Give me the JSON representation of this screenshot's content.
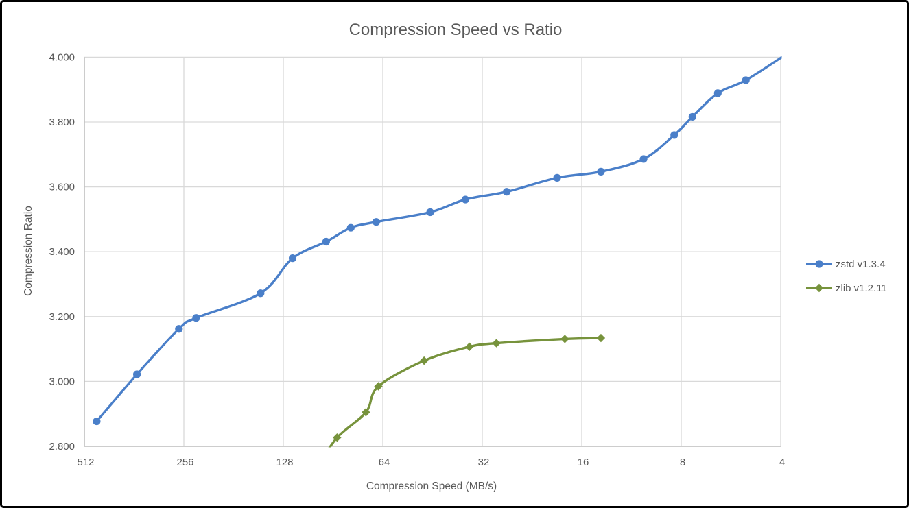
{
  "title": "Compression Speed vs Ratio",
  "colors": {
    "series_zstd": "#4A7FC9",
    "series_zlib": "#77933C",
    "gridline": "#D9D9D9",
    "axis_line": "#BFBFBF",
    "tick_text": "#595959",
    "title_text": "#595959",
    "legend_text": "#595959",
    "chart_background": "#FFFFFF",
    "frame_border": "#000000"
  },
  "chart_data": {
    "type": "line",
    "title": "Compression Speed vs Ratio",
    "xlabel": "Compression Speed (MB/s)",
    "ylabel": "Compression Ratio",
    "x_scale": "log2-reversed",
    "x_ticks": [
      512,
      256,
      128,
      64,
      32,
      16,
      8,
      4
    ],
    "y_tick_labels": [
      "2.800",
      "3.000",
      "3.200",
      "3.400",
      "3.600",
      "3.800",
      "4.000"
    ],
    "x_range": [
      512,
      4
    ],
    "y_range": [
      2.8,
      4.0
    ],
    "grid": true,
    "legend_position": "right-middle",
    "series": [
      {
        "name": "zstd v1.3.4",
        "color": "#4A7FC9",
        "marker": "circle",
        "points": [
          [
            470,
            2.877
          ],
          [
            355,
            3.022
          ],
          [
            265,
            3.162
          ],
          [
            235,
            3.196
          ],
          [
            150,
            3.272
          ],
          [
            120,
            3.38
          ],
          [
            95,
            3.431
          ],
          [
            80,
            3.474
          ],
          [
            67,
            3.492
          ],
          [
            46,
            3.522
          ],
          [
            36,
            3.561
          ],
          [
            27,
            3.585
          ],
          [
            19,
            3.628
          ],
          [
            14,
            3.647
          ],
          [
            10.4,
            3.686
          ],
          [
            8.4,
            3.76
          ],
          [
            7.4,
            3.816
          ],
          [
            6.2,
            3.889
          ],
          [
            5.1,
            3.929
          ],
          [
            3.9,
            4.005
          ]
        ],
        "note": "last point extends past top-right plot corner and is clipped"
      },
      {
        "name": "zlib v1.2.11",
        "color": "#77933C",
        "marker": "diamond",
        "points": [
          [
            100,
            2.743
          ],
          [
            88,
            2.827
          ],
          [
            72,
            2.905
          ],
          [
            66,
            2.985
          ],
          [
            48,
            3.064
          ],
          [
            35,
            3.107
          ],
          [
            29,
            3.118
          ],
          [
            18,
            3.131
          ],
          [
            14,
            3.134
          ]
        ],
        "note": "first point lies below y-axis minimum and is clipped"
      }
    ]
  }
}
